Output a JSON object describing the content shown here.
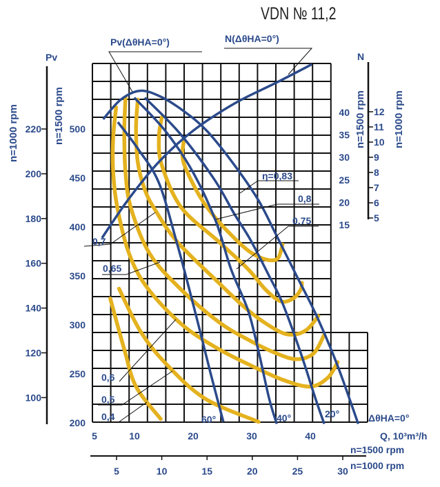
{
  "title": "VDN № 11,2",
  "chart_data": {
    "type": "line",
    "title": "VDN № 11,2",
    "xlabel": "Q, 10³m³/h",
    "ylabel": "Pv",
    "y2label": "N",
    "xlim": [
      5,
      50
    ],
    "ylim": [
      200,
      560
    ],
    "grid": true,
    "x_axes": [
      {
        "label": "n=1500 rpm",
        "ticks": [
          5,
          10,
          20,
          30,
          40
        ],
        "tick_labels": [
          "5",
          "10",
          "20",
          "30",
          "40"
        ]
      },
      {
        "label": "n=1000 rpm",
        "ticks": [
          5,
          10,
          15,
          20,
          25,
          30
        ],
        "tick_labels": [
          "5",
          "10",
          "15",
          "20",
          "25",
          "30"
        ]
      }
    ],
    "y_axes": [
      {
        "label": "n=1500 rpm",
        "ticks": [
          500,
          450,
          400,
          350,
          300,
          250,
          200
        ],
        "tick_labels": [
          "500",
          "450",
          "400",
          "350",
          "300",
          "250",
          "200"
        ]
      },
      {
        "label": "n=1000 rpm",
        "ticks": [
          220,
          200,
          180,
          160,
          140,
          120,
          100
        ],
        "tick_labels": [
          "220",
          "200",
          "180",
          "160",
          "140",
          "120",
          "100"
        ]
      }
    ],
    "n_axes": [
      {
        "label": "n=1500 rpm",
        "ticks": [
          40,
          35,
          30,
          25,
          20,
          15
        ],
        "tick_labels": [
          "40",
          "35",
          "30",
          "25",
          "20",
          "15"
        ]
      },
      {
        "label": "n=1000 rpm",
        "ticks": [
          12,
          11,
          10,
          9,
          8,
          7,
          6,
          5
        ],
        "tick_labels": [
          "12",
          "11",
          "10",
          "9",
          "8",
          "7",
          "6",
          "5"
        ]
      }
    ],
    "pressure_series": [
      {
        "angle_deg": 0,
        "label": "ΔθHA=0°",
        "points": [
          [
            4.9,
            510
          ],
          [
            7.9,
            530
          ],
          [
            11.2,
            539
          ],
          [
            14.7,
            533
          ],
          [
            18.7,
            518
          ],
          [
            22.6,
            498
          ],
          [
            27.3,
            463
          ],
          [
            31.4,
            427
          ],
          [
            34.4,
            392
          ],
          [
            37.9,
            350
          ],
          [
            41.4,
            308
          ],
          [
            44.9,
            258
          ],
          [
            48.4,
            199
          ]
        ]
      },
      {
        "angle_deg": 20,
        "label": "20°",
        "points": [
          [
            12.0,
            532
          ],
          [
            17.9,
            496
          ],
          [
            23.8,
            449
          ],
          [
            27.3,
            413
          ],
          [
            30.0,
            387
          ],
          [
            33.2,
            350
          ],
          [
            35.5,
            322
          ],
          [
            38.5,
            273
          ],
          [
            41.1,
            225
          ],
          [
            42.6,
            199
          ]
        ]
      },
      {
        "angle_deg": 40,
        "label": "40°",
        "points": [
          [
            10.2,
            532
          ],
          [
            15.5,
            498
          ],
          [
            20.2,
            456
          ],
          [
            24.1,
            406
          ],
          [
            26.7,
            357
          ],
          [
            29.6,
            315
          ],
          [
            31.4,
            273
          ],
          [
            33.2,
            225
          ],
          [
            34.5,
            199
          ]
        ]
      },
      {
        "angle_deg": 60,
        "label": "60°",
        "points": [
          [
            7.4,
            507
          ],
          [
            10.8,
            480
          ],
          [
            14.4,
            445
          ],
          [
            17.5,
            383
          ],
          [
            19.6,
            336
          ],
          [
            21.4,
            294
          ],
          [
            23.2,
            251
          ],
          [
            25.4,
            201
          ]
        ]
      }
    ],
    "power_series": {
      "label": "N(ΔθHA=0°)",
      "points": [
        [
          4.7,
          12.1
        ],
        [
          9.1,
          20.5
        ],
        [
          14.4,
          29.0
        ],
        [
          20.2,
          35.9
        ],
        [
          27.3,
          42.0
        ],
        [
          34.4,
          46.6
        ],
        [
          40.5,
          50.7
        ]
      ]
    },
    "pressure_envelope_label": "Pv(ΔθHA=0°)",
    "efficiency_series": [
      {
        "eta": 0.83,
        "points": [
          [
            18.7,
            489
          ],
          [
            18.4,
            473
          ],
          [
            19.1,
            458
          ],
          [
            21.4,
            431
          ],
          [
            23.8,
            411
          ],
          [
            26.7,
            392
          ],
          [
            29.6,
            376
          ],
          [
            32.0,
            368
          ],
          [
            34.0,
            366
          ],
          [
            34.9,
            370
          ],
          [
            35.5,
            382
          ]
        ]
      },
      {
        "eta": 0.8,
        "points": [
          [
            14.9,
            512
          ],
          [
            14.4,
            491
          ],
          [
            14.9,
            463
          ],
          [
            18.2,
            420
          ],
          [
            24.6,
            385
          ],
          [
            29.6,
            357
          ],
          [
            32.6,
            336
          ],
          [
            35.2,
            324
          ],
          [
            37.3,
            327
          ],
          [
            38.6,
            336
          ],
          [
            38.8,
            343
          ]
        ]
      },
      {
        "eta": 0.75,
        "points": [
          [
            10.8,
            530
          ],
          [
            10.5,
            501
          ],
          [
            10.8,
            466
          ],
          [
            12.0,
            438
          ],
          [
            13.8,
            417
          ],
          [
            17.5,
            385
          ],
          [
            24.6,
            343
          ],
          [
            29.6,
            315
          ],
          [
            34.4,
            295
          ],
          [
            37.1,
            290
          ],
          [
            39.6,
            295
          ],
          [
            41.6,
            309
          ]
        ]
      },
      {
        "eta": 0.7,
        "points": [
          [
            8.7,
            532
          ],
          [
            8.5,
            498
          ],
          [
            8.7,
            456
          ],
          [
            9.6,
            420
          ],
          [
            12.8,
            373
          ],
          [
            18.2,
            336
          ],
          [
            24.6,
            303
          ],
          [
            29.6,
            285
          ],
          [
            34.4,
            271
          ],
          [
            37.9,
            265
          ],
          [
            40.8,
            271
          ],
          [
            42.6,
            290
          ]
        ]
      },
      {
        "eta": 0.65,
        "points": [
          [
            7.1,
            522
          ],
          [
            6.6,
            491
          ],
          [
            6.6,
            456
          ],
          [
            7.3,
            420
          ],
          [
            9.3,
            373
          ],
          [
            12.4,
            338
          ],
          [
            18.2,
            301
          ],
          [
            24.1,
            277
          ],
          [
            29.6,
            260
          ],
          [
            35.5,
            244
          ],
          [
            40.2,
            237
          ],
          [
            43.2,
            246
          ],
          [
            44.9,
            262
          ]
        ]
      },
      {
        "eta": 0.5,
        "points": [
          [
            7.6,
            337
          ],
          [
            11.2,
            294
          ],
          [
            15.5,
            261
          ],
          [
            22.2,
            225
          ],
          [
            31.4,
            201
          ]
        ]
      },
      {
        "eta": 0.4,
        "points": [
          [
            6.1,
            327
          ],
          [
            8.5,
            275
          ],
          [
            10.5,
            237
          ],
          [
            14.7,
            204
          ]
        ]
      }
    ],
    "annotations": {
      "eta_083": "η=0,83",
      "eta_08": "0,8",
      "eta_075": "0,75",
      "eta_07": "0,7",
      "eta_065": "0,65",
      "eta_06": "0,6",
      "eta_05": "0,5",
      "eta_04": "0,4",
      "angle_60": "60°",
      "angle_40": "40°",
      "angle_20": "20°",
      "angle_0": "ΔθHA=0°",
      "pv_axis": "Pv",
      "n_axis": "N",
      "q_unit": "Q, 10³m³/h",
      "q_rpm1500": "n=1500 rpm",
      "q_rpm1000": "n=1000 rpm",
      "pv_rpm1000": "n=1000 rpm",
      "pv_rpm1500": "n=1500 rpm",
      "n_rpm1500": "n=1500 rpm",
      "n_rpm1000": "n=1000 rpm"
    },
    "colors": {
      "pressure": "#2b4a8b",
      "efficiency": "#e4b21f",
      "grid": "#111111"
    }
  }
}
